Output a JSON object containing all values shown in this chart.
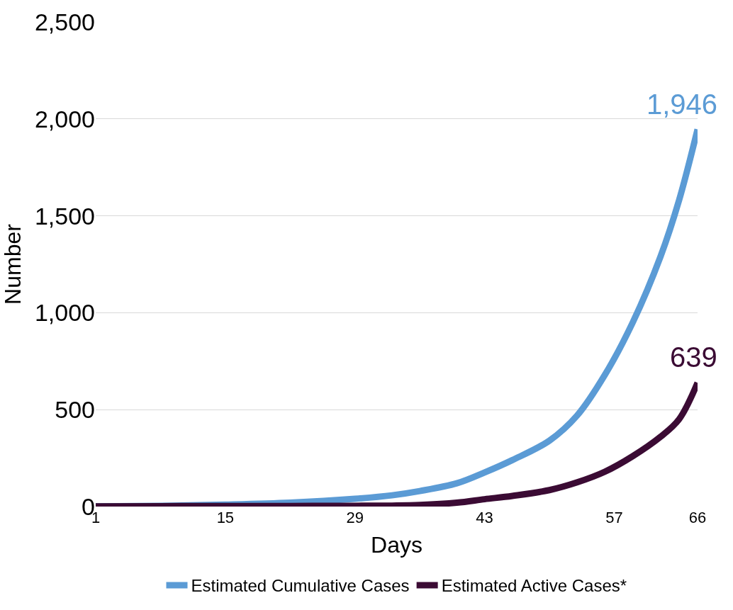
{
  "chart_data": {
    "type": "line",
    "xlabel": "Days",
    "ylabel": "Number",
    "x": [
      1,
      8,
      15,
      22,
      29,
      33,
      36,
      40,
      43,
      46,
      50,
      53,
      56,
      59,
      62,
      64,
      66
    ],
    "series": [
      {
        "name": "Estimated Cumulative Cases",
        "color": "#5b9bd5",
        "values": [
          1,
          4,
          10,
          20,
          40,
          58,
          80,
          120,
          176,
          240,
          340,
          470,
          680,
          950,
          1290,
          1580,
          1946
        ]
      },
      {
        "name": "Estimated Active Cases*",
        "color": "#3b0b34",
        "values": [
          1,
          2,
          3,
          3,
          4,
          5,
          8,
          20,
          38,
          55,
          85,
          125,
          180,
          260,
          360,
          450,
          639
        ]
      }
    ],
    "annotations": [
      {
        "text": "1,946",
        "x": 66,
        "y": 1946
      },
      {
        "text": "639",
        "x": 66,
        "y": 639
      }
    ],
    "xlim": [
      1,
      66
    ],
    "xticks": [
      1,
      15,
      29,
      43,
      57,
      66
    ],
    "ylim": [
      0,
      2500
    ],
    "yticks": [
      {
        "value": 0,
        "label": "0"
      },
      {
        "value": 500,
        "label": "500"
      },
      {
        "value": 1000,
        "label": "1,000"
      },
      {
        "value": 1500,
        "label": "1,500"
      },
      {
        "value": 2000,
        "label": "2,000"
      },
      {
        "value": 2500,
        "label": "2,500"
      }
    ],
    "grid": "y",
    "legend": "bottom",
    "line_style": "solid",
    "marker": "none"
  }
}
